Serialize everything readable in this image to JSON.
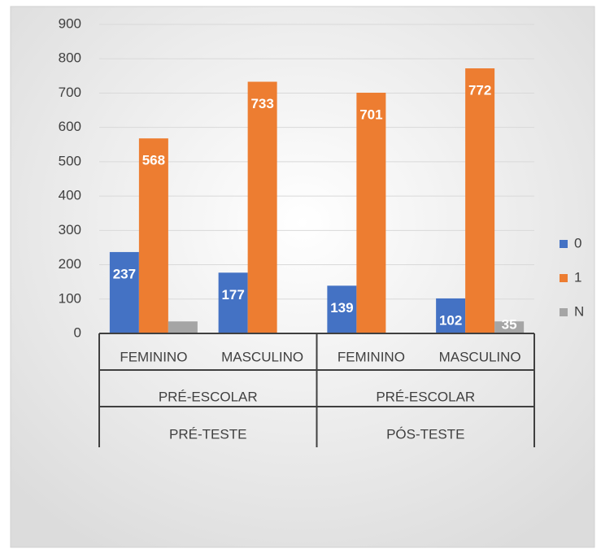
{
  "chart_data": {
    "type": "bar",
    "categories": [
      "FEMININO",
      "MASCULINO",
      "FEMININO",
      "MASCULINO"
    ],
    "groups": [
      "PRÉ-ESCOLAR",
      "PRÉ-ESCOLAR"
    ],
    "supergroups": [
      "PRÉ-TESTE",
      "PÓS-TESTE"
    ],
    "series": [
      {
        "name": "0",
        "color": "#4472c4",
        "values": [
          237,
          177,
          139,
          102
        ]
      },
      {
        "name": "1",
        "color": "#ed7d31",
        "values": [
          568,
          733,
          701,
          772
        ]
      },
      {
        "name": "N",
        "color": "#a5a5a5",
        "values": [
          35,
          null,
          null,
          35
        ],
        "value_labels": [
          null,
          null,
          null,
          "35"
        ]
      }
    ],
    "ylim": [
      0,
      900
    ],
    "yticks": [
      0,
      100,
      200,
      300,
      400,
      500,
      600,
      700,
      800,
      900
    ],
    "grid": true,
    "legend": "right"
  }
}
